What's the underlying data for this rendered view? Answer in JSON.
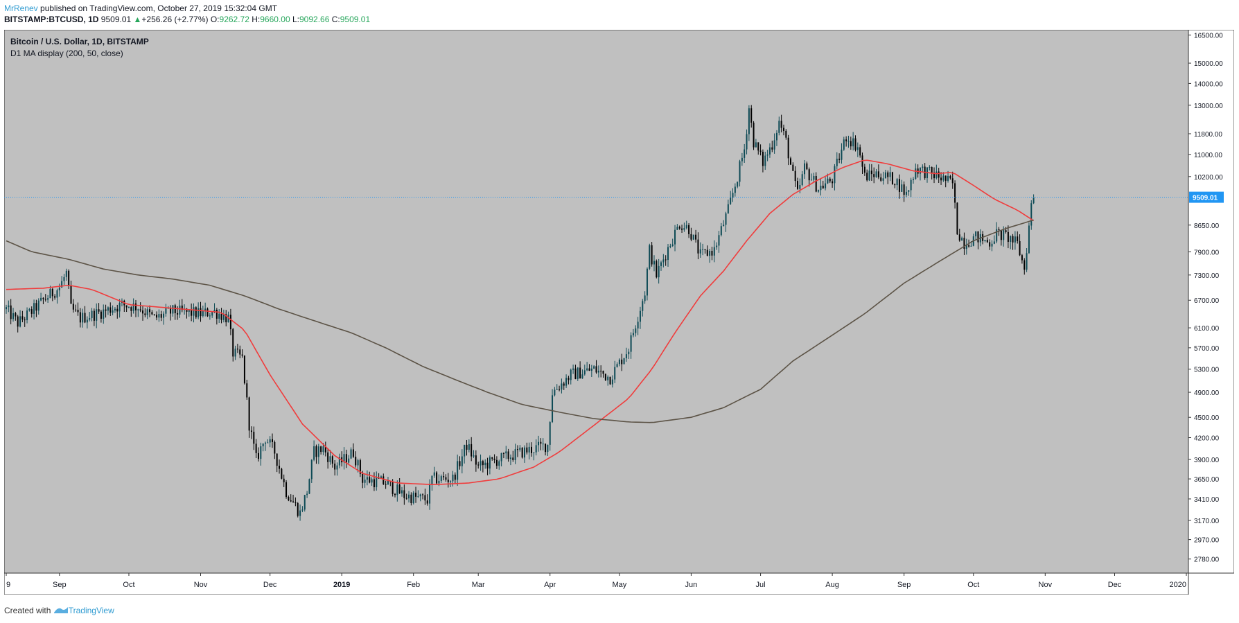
{
  "header": {
    "author": "MrRenev",
    "published": "published on TradingView.com, October 27, 2019 15:32:04 GMT",
    "symbol": "BITSTAMP:BTCUSD, 1D",
    "last": "9509.01",
    "change_arrow": "▲",
    "change": "+256.26 (+2.77%)",
    "open_label": "O:",
    "open": "9262.72",
    "high_label": "H:",
    "high": "9660.00",
    "low_label": "L:",
    "low": "9092.66",
    "close_label": "C:",
    "close": "9509.01"
  },
  "chart_title": {
    "line1": "Bitcoin / U.S. Dollar, 1D, BITSTAMP",
    "line2": "D1 MA display (200, 50, close)"
  },
  "footer": {
    "created_with": "Created with",
    "brand": "TradingView"
  },
  "colors": {
    "background": "#c0c0c0",
    "up_candle": "#0d4a55",
    "down_candle": "#000000",
    "ma50": "#f03c3c",
    "ma200": "#5c5346",
    "price_line": "#2196f3",
    "price_label_bg": "#2196f3"
  },
  "chart_data": {
    "type": "candlestick",
    "scale": "log",
    "ylim": [
      2650,
      16800
    ],
    "y_ticks": [
      "16500.00",
      "15000.00",
      "14000.00",
      "13000.00",
      "11800.00",
      "11000.00",
      "10200.00",
      "9509.01",
      "8650.00",
      "7900.00",
      "7300.00",
      "6700.00",
      "6100.00",
      "5700.00",
      "5300.00",
      "4900.00",
      "4500.00",
      "4200.00",
      "3900.00",
      "3650.00",
      "3410.00",
      "3170.00",
      "2970.00",
      "2780.00"
    ],
    "current_price": 9509.01,
    "current_price_label": "9509.01",
    "x_range": [
      "2018-08-09",
      "2020-01-01"
    ],
    "x_ticks": [
      {
        "date": "2018-08-09",
        "label": "9"
      },
      {
        "date": "2018-09-01",
        "label": "Sep"
      },
      {
        "date": "2018-10-01",
        "label": "Oct"
      },
      {
        "date": "2018-11-01",
        "label": "Nov"
      },
      {
        "date": "2018-12-01",
        "label": "Dec"
      },
      {
        "date": "2019-01-01",
        "label": "2019"
      },
      {
        "date": "2019-02-01",
        "label": "Feb"
      },
      {
        "date": "2019-03-01",
        "label": "Mar"
      },
      {
        "date": "2019-04-01",
        "label": "Apr"
      },
      {
        "date": "2019-05-01",
        "label": "May"
      },
      {
        "date": "2019-06-01",
        "label": "Jun"
      },
      {
        "date": "2019-07-01",
        "label": "Jul"
      },
      {
        "date": "2019-08-01",
        "label": "Aug"
      },
      {
        "date": "2019-09-01",
        "label": "Sep"
      },
      {
        "date": "2019-10-01",
        "label": "Oct"
      },
      {
        "date": "2019-11-01",
        "label": "Nov"
      },
      {
        "date": "2019-12-01",
        "label": "Dec"
      },
      {
        "date": "2020-01-01",
        "label": "2020"
      }
    ],
    "close_path": [
      [
        "2018-08-09",
        6500
      ],
      [
        "2018-08-14",
        6200
      ],
      [
        "2018-08-20",
        6450
      ],
      [
        "2018-08-25",
        6700
      ],
      [
        "2018-09-01",
        7000
      ],
      [
        "2018-09-04",
        7350
      ],
      [
        "2018-09-06",
        6500
      ],
      [
        "2018-09-10",
        6300
      ],
      [
        "2018-09-20",
        6450
      ],
      [
        "2018-09-28",
        6600
      ],
      [
        "2018-10-05",
        6550
      ],
      [
        "2018-10-12",
        6300
      ],
      [
        "2018-10-20",
        6450
      ],
      [
        "2018-11-01",
        6400
      ],
      [
        "2018-11-07",
        6450
      ],
      [
        "2018-11-13",
        6300
      ],
      [
        "2018-11-15",
        5600
      ],
      [
        "2018-11-19",
        5500
      ],
      [
        "2018-11-22",
        4400
      ],
      [
        "2018-11-25",
        3900
      ],
      [
        "2018-11-29",
        4200
      ],
      [
        "2018-12-03",
        4000
      ],
      [
        "2018-12-08",
        3500
      ],
      [
        "2018-12-14",
        3250
      ],
      [
        "2018-12-17",
        3500
      ],
      [
        "2018-12-20",
        4000
      ],
      [
        "2018-12-24",
        4050
      ],
      [
        "2018-12-29",
        3800
      ],
      [
        "2019-01-06",
        4000
      ],
      [
        "2019-01-10",
        3650
      ],
      [
        "2019-01-20",
        3600
      ],
      [
        "2019-01-28",
        3450
      ],
      [
        "2019-02-07",
        3400
      ],
      [
        "2019-02-09",
        3650
      ],
      [
        "2019-02-18",
        3650
      ],
      [
        "2019-02-24",
        4100
      ],
      [
        "2019-03-01",
        3800
      ],
      [
        "2019-03-10",
        3900
      ],
      [
        "2019-03-20",
        4000
      ],
      [
        "2019-03-31",
        4100
      ],
      [
        "2019-04-02",
        4900
      ],
      [
        "2019-04-10",
        5200
      ],
      [
        "2019-04-20",
        5300
      ],
      [
        "2019-04-27",
        5150
      ],
      [
        "2019-05-05",
        5700
      ],
      [
        "2019-05-12",
        6900
      ],
      [
        "2019-05-14",
        7950
      ],
      [
        "2019-05-17",
        7300
      ],
      [
        "2019-05-22",
        8000
      ],
      [
        "2019-05-27",
        8700
      ],
      [
        "2019-05-31",
        8550
      ],
      [
        "2019-06-05",
        7800
      ],
      [
        "2019-06-11",
        7950
      ],
      [
        "2019-06-17",
        9100
      ],
      [
        "2019-06-21",
        10200
      ],
      [
        "2019-06-24",
        11200
      ],
      [
        "2019-06-26",
        12900
      ],
      [
        "2019-06-28",
        11500
      ],
      [
        "2019-07-02",
        10700
      ],
      [
        "2019-07-06",
        11400
      ],
      [
        "2019-07-09",
        12300
      ],
      [
        "2019-07-12",
        11500
      ],
      [
        "2019-07-15",
        10200
      ],
      [
        "2019-07-17",
        9600
      ],
      [
        "2019-07-20",
        10500
      ],
      [
        "2019-07-26",
        9800
      ],
      [
        "2019-08-01",
        10100
      ],
      [
        "2019-08-04",
        10900
      ],
      [
        "2019-08-07",
        11700
      ],
      [
        "2019-08-12",
        11300
      ],
      [
        "2019-08-15",
        10200
      ],
      [
        "2019-08-20",
        10300
      ],
      [
        "2019-08-28",
        10100
      ],
      [
        "2019-09-02",
        9600
      ],
      [
        "2019-09-06",
        10500
      ],
      [
        "2019-09-16",
        10200
      ],
      [
        "2019-09-22",
        9950
      ],
      [
        "2019-09-24",
        8500
      ],
      [
        "2019-09-27",
        8150
      ],
      [
        "2019-10-02",
        8300
      ],
      [
        "2019-10-08",
        8150
      ],
      [
        "2019-10-11",
        8400
      ],
      [
        "2019-10-16",
        8300
      ],
      [
        "2019-10-20",
        8100
      ],
      [
        "2019-10-23",
        7450
      ],
      [
        "2019-10-25",
        8600
      ],
      [
        "2019-10-26",
        9262.72
      ],
      [
        "2019-10-27",
        9509.01
      ]
    ],
    "series": [
      {
        "name": "MA 50",
        "points": [
          [
            "2018-08-09",
            6950
          ],
          [
            "2018-08-25",
            6980
          ],
          [
            "2018-09-05",
            7050
          ],
          [
            "2018-09-15",
            6950
          ],
          [
            "2018-10-01",
            6600
          ],
          [
            "2018-10-20",
            6520
          ],
          [
            "2018-11-10",
            6430
          ],
          [
            "2018-11-20",
            6050
          ],
          [
            "2018-12-01",
            5200
          ],
          [
            "2018-12-15",
            4400
          ],
          [
            "2018-12-29",
            3950
          ],
          [
            "2019-01-10",
            3720
          ],
          [
            "2019-01-25",
            3600
          ],
          [
            "2019-02-10",
            3580
          ],
          [
            "2019-02-25",
            3600
          ],
          [
            "2019-03-10",
            3650
          ],
          [
            "2019-03-25",
            3800
          ],
          [
            "2019-04-05",
            4000
          ],
          [
            "2019-04-20",
            4380
          ],
          [
            "2019-05-05",
            4800
          ],
          [
            "2019-05-15",
            5300
          ],
          [
            "2019-05-25",
            6000
          ],
          [
            "2019-06-05",
            6800
          ],
          [
            "2019-06-15",
            7400
          ],
          [
            "2019-06-25",
            8200
          ],
          [
            "2019-07-05",
            9000
          ],
          [
            "2019-07-15",
            9600
          ],
          [
            "2019-07-25",
            10050
          ],
          [
            "2019-08-05",
            10500
          ],
          [
            "2019-08-15",
            10800
          ],
          [
            "2019-08-25",
            10650
          ],
          [
            "2019-09-05",
            10400
          ],
          [
            "2019-09-15",
            10300
          ],
          [
            "2019-09-22",
            10350
          ],
          [
            "2019-10-01",
            9900
          ],
          [
            "2019-10-10",
            9450
          ],
          [
            "2019-10-20",
            9100
          ],
          [
            "2019-10-27",
            8780
          ]
        ]
      },
      {
        "name": "MA 200",
        "points": [
          [
            "2018-08-09",
            8200
          ],
          [
            "2018-08-20",
            7900
          ],
          [
            "2018-09-05",
            7700
          ],
          [
            "2018-09-20",
            7450
          ],
          [
            "2018-10-05",
            7300
          ],
          [
            "2018-10-20",
            7200
          ],
          [
            "2018-11-05",
            7050
          ],
          [
            "2018-11-20",
            6800
          ],
          [
            "2018-12-05",
            6500
          ],
          [
            "2018-12-20",
            6250
          ],
          [
            "2019-01-05",
            6000
          ],
          [
            "2019-01-20",
            5700
          ],
          [
            "2019-02-05",
            5350
          ],
          [
            "2019-02-20",
            5100
          ],
          [
            "2019-03-05",
            4900
          ],
          [
            "2019-03-20",
            4700
          ],
          [
            "2019-04-05",
            4580
          ],
          [
            "2019-04-20",
            4480
          ],
          [
            "2019-05-05",
            4430
          ],
          [
            "2019-05-15",
            4420
          ],
          [
            "2019-06-01",
            4500
          ],
          [
            "2019-06-15",
            4650
          ],
          [
            "2019-07-01",
            4950
          ],
          [
            "2019-07-15",
            5450
          ],
          [
            "2019-08-01",
            5950
          ],
          [
            "2019-08-15",
            6400
          ],
          [
            "2019-09-01",
            7100
          ],
          [
            "2019-09-15",
            7600
          ],
          [
            "2019-10-01",
            8200
          ],
          [
            "2019-10-15",
            8550
          ],
          [
            "2019-10-27",
            8800
          ]
        ]
      }
    ]
  }
}
